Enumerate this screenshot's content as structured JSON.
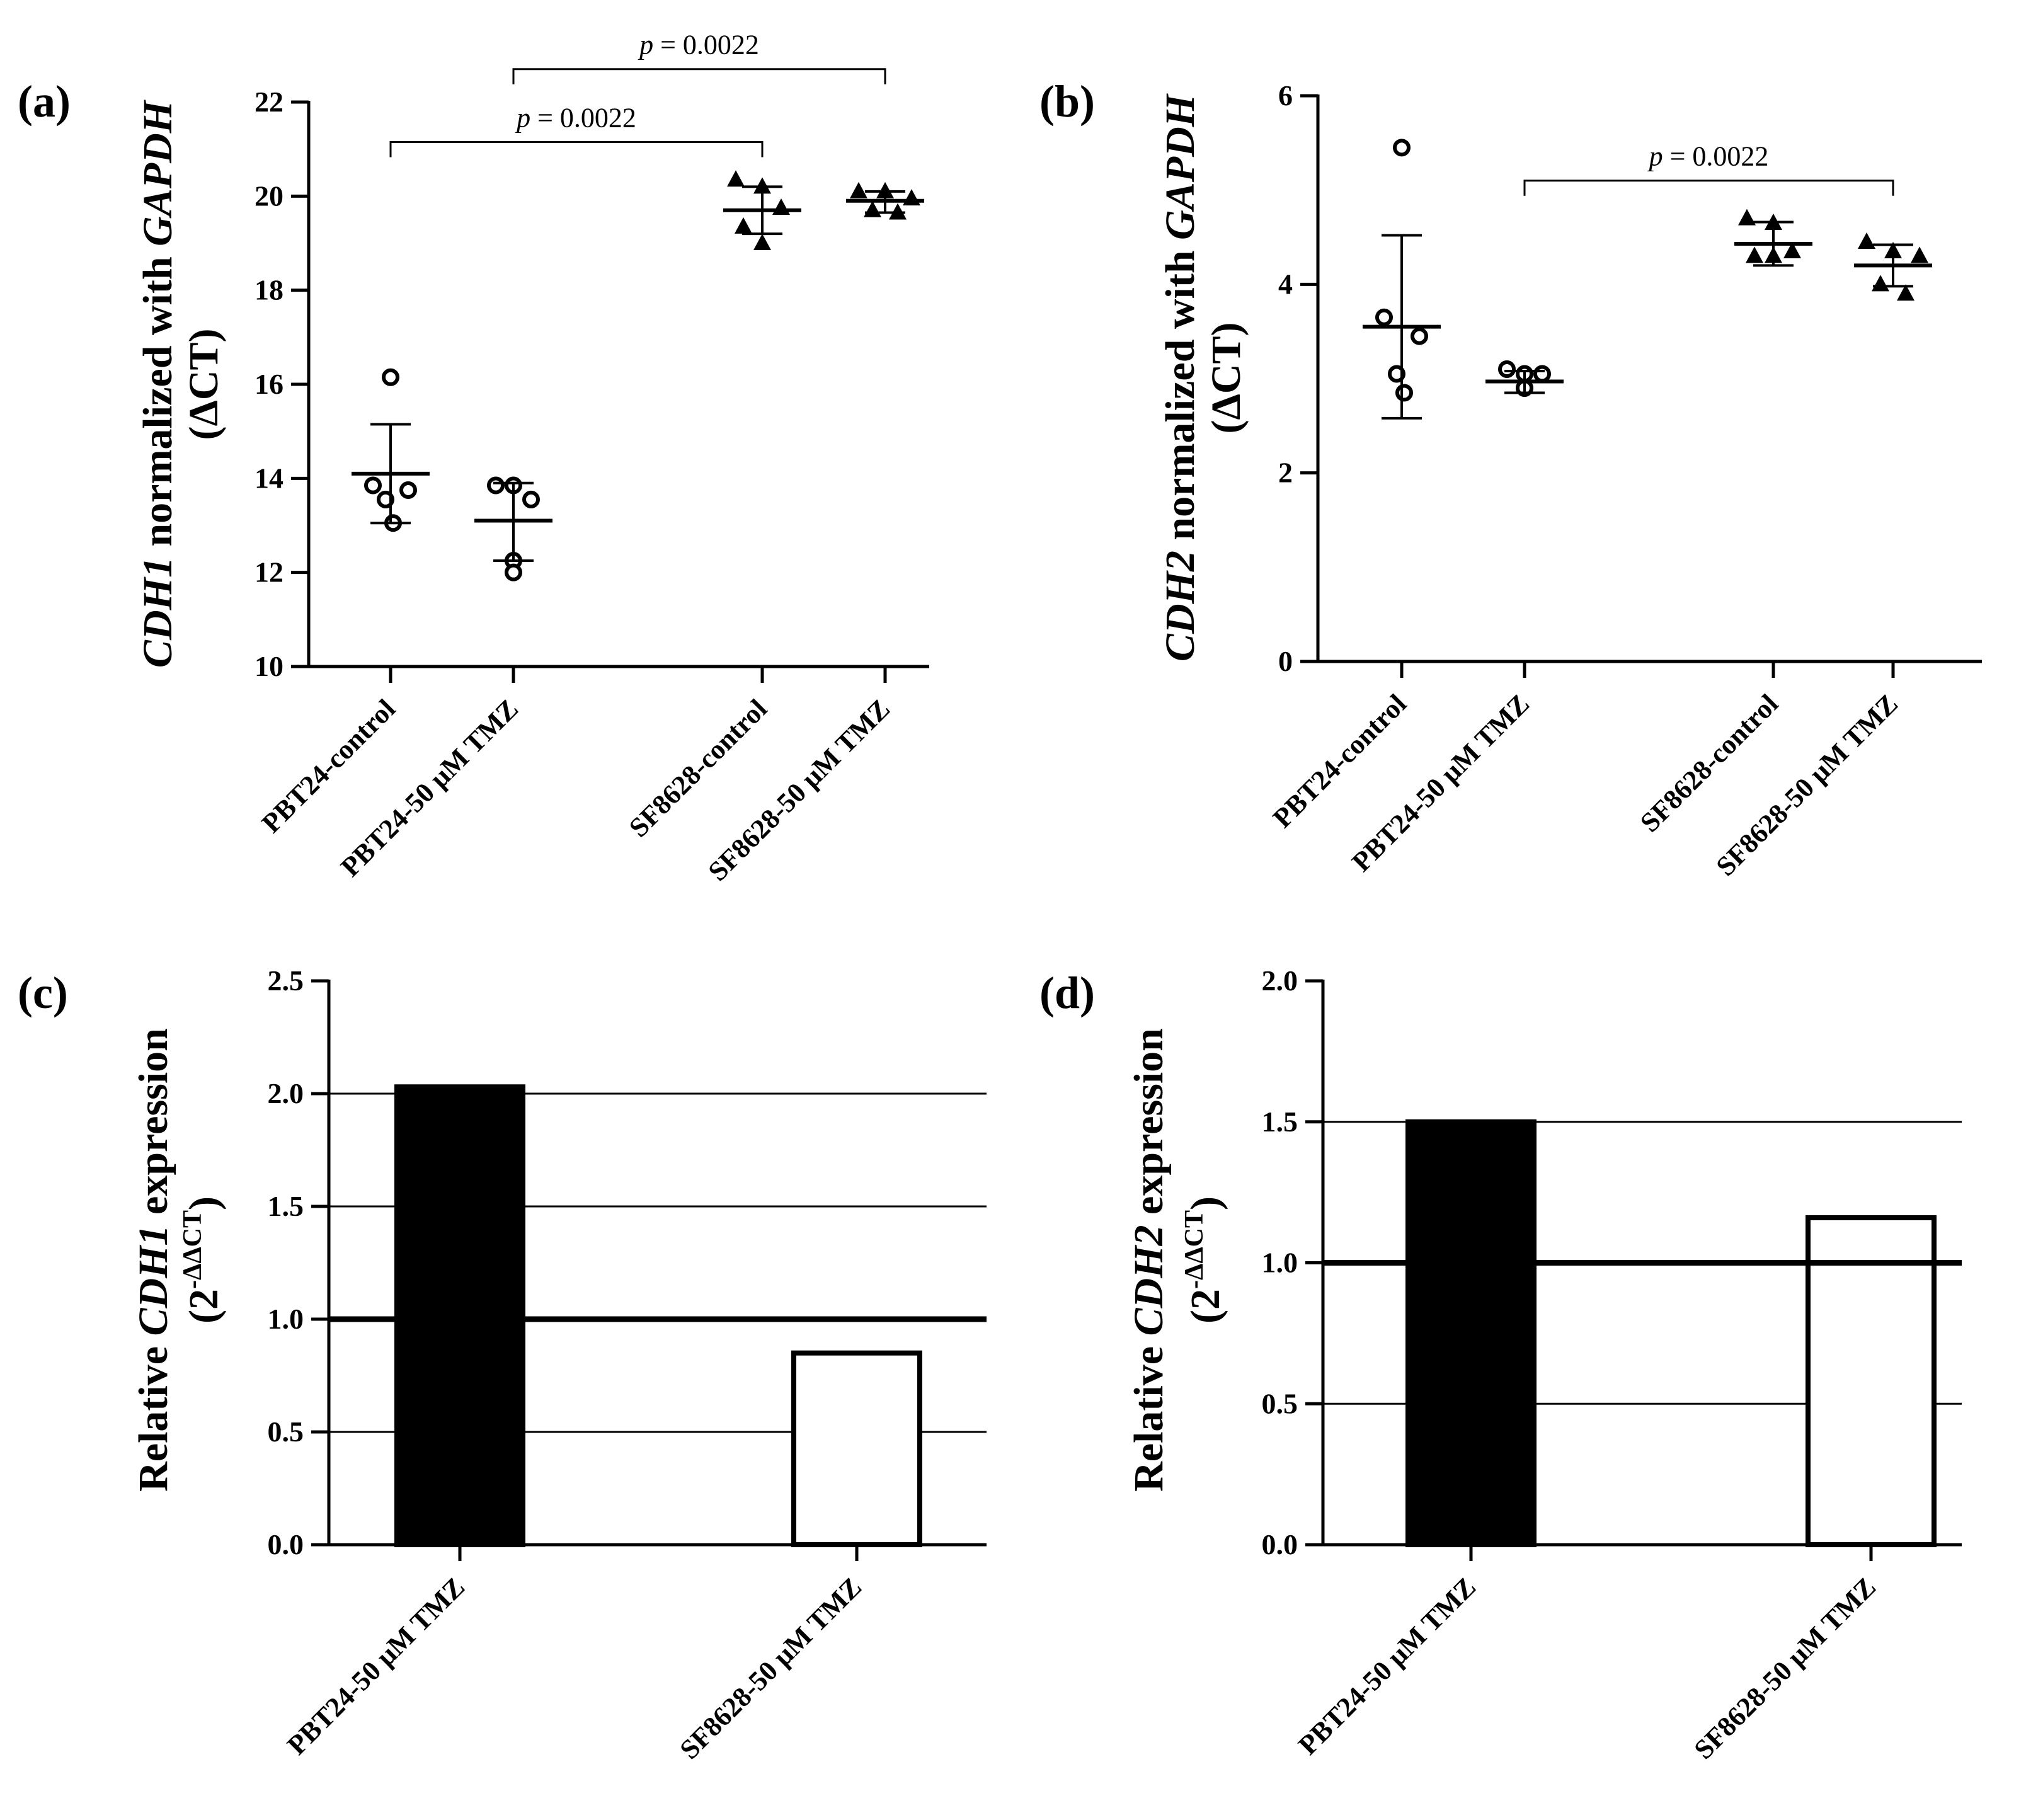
{
  "chart_data": [
    {
      "id": "a",
      "panel_label": "(a)",
      "type": "scatter",
      "ylabel": {
        "gene": "CDH1",
        "text": " normalized with ",
        "ref": "GAPDH",
        "line2": "(ΔCT)"
      },
      "ylim": [
        10,
        22
      ],
      "yticks": [
        10,
        12,
        14,
        16,
        18,
        20,
        22
      ],
      "categories": [
        "PBT24-control",
        "PBT24-50 μM TMZ",
        "SF8628-control",
        "SF8628-50 μM TMZ"
      ],
      "markers": [
        "circle",
        "circle",
        "triangle",
        "triangle"
      ],
      "points": [
        [
          16.15,
          13.85,
          13.75,
          13.55,
          13.05
        ],
        [
          13.85,
          13.85,
          13.55,
          12.25,
          12.0
        ],
        [
          20.35,
          20.2,
          19.75,
          19.35,
          19.0
        ],
        [
          20.1,
          20.1,
          19.95,
          19.7,
          19.65
        ]
      ],
      "means": [
        14.1,
        13.1,
        19.7,
        19.9
      ],
      "errors": [
        [
          13.05,
          15.15
        ],
        [
          12.25,
          13.9
        ],
        [
          19.2,
          20.2
        ],
        [
          19.65,
          20.1
        ]
      ],
      "brackets": [
        {
          "from": 0,
          "to": 2,
          "y": 21.15,
          "label_prefix": "p",
          "label_value": " = 0.0022"
        },
        {
          "from": 1,
          "to": 3,
          "y": 22.7,
          "label_prefix": "p",
          "label_value": " = 0.0022"
        }
      ]
    },
    {
      "id": "b",
      "panel_label": "(b)",
      "type": "scatter",
      "ylabel": {
        "gene": "CDH2",
        "text": " normalized with ",
        "ref": "GAPDH",
        "line2": "(ΔCT)"
      },
      "ylim": [
        0,
        6
      ],
      "yticks": [
        0,
        2,
        4,
        6
      ],
      "categories": [
        "PBT24-control",
        "PBT24-50 μM TMZ",
        "SF8628-control",
        "SF8628-50 μM TMZ"
      ],
      "markers": [
        "circle",
        "circle",
        "triangle",
        "triangle"
      ],
      "points": [
        [
          5.45,
          3.65,
          3.45,
          3.05,
          2.85
        ],
        [
          3.1,
          3.05,
          3.05,
          2.9,
          2.9
        ],
        [
          4.7,
          4.65,
          4.35,
          4.3,
          4.3
        ],
        [
          4.45,
          4.35,
          4.3,
          4.0,
          3.9
        ]
      ],
      "means": [
        3.55,
        2.97,
        4.43,
        4.2
      ],
      "errors": [
        [
          2.58,
          4.52
        ],
        [
          2.85,
          3.08
        ],
        [
          4.2,
          4.66
        ],
        [
          3.98,
          4.42
        ]
      ],
      "brackets": [
        {
          "from": 1,
          "to": 3,
          "y": 5.1,
          "label_prefix": "p",
          "label_value": " = 0.0022"
        }
      ]
    },
    {
      "id": "c",
      "panel_label": "(c)",
      "type": "bar",
      "ylabel": {
        "prefix": "Relative ",
        "gene": "CDH1",
        "suffix": " expression",
        "line2": "(2",
        "sup": "-ΔΔCT",
        "line2_end": ")"
      },
      "ylim": [
        0,
        2.5
      ],
      "yticks": [
        "0.0",
        "0.5",
        "1.0",
        "1.5",
        "2.0",
        "2.5"
      ],
      "gridlines": [
        0.5,
        1.5,
        2.0
      ],
      "reference_line": 1.0,
      "categories": [
        "PBT24-50 μM TMZ",
        "SF8628-50 μM TMZ"
      ],
      "values": [
        2.03,
        0.85
      ],
      "fills": [
        "#000000",
        "#ffffff"
      ]
    },
    {
      "id": "d",
      "panel_label": "(d)",
      "type": "bar",
      "ylabel": {
        "prefix": "Relative ",
        "gene": "CDH2",
        "suffix": " expression",
        "line2": "(2",
        "sup": "-ΔΔCT",
        "line2_end": ")"
      },
      "ylim": [
        0,
        2.0
      ],
      "yticks": [
        "0.0",
        "0.5",
        "1.0",
        "1.5",
        "2.0"
      ],
      "gridlines": [
        0.5,
        1.5
      ],
      "reference_line": 1.0,
      "categories": [
        "PBT24-50 μM TMZ",
        "SF8628-50 μM TMZ"
      ],
      "values": [
        1.5,
        1.16
      ],
      "fills": [
        "#000000",
        "#ffffff"
      ]
    }
  ]
}
